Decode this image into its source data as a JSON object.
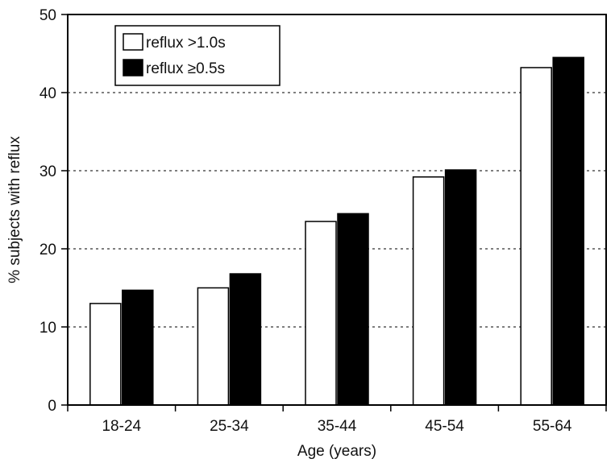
{
  "chart_data": {
    "type": "bar",
    "title": "",
    "xlabel": "Age (years)",
    "ylabel": "% subjects with reflux",
    "categories": [
      "18-24",
      "25-34",
      "35-44",
      "45-54",
      "55-64"
    ],
    "series": [
      {
        "name": "reflux >1.0s",
        "color": "#ffffff",
        "values": [
          13,
          15,
          23.5,
          29.2,
          43.2
        ]
      },
      {
        "name": "reflux ≥0.5s",
        "color": "#000000",
        "values": [
          14.7,
          16.8,
          24.5,
          30.1,
          44.5
        ]
      }
    ],
    "ylim": [
      0,
      50
    ],
    "yticks": [
      0,
      10,
      20,
      30,
      40,
      50
    ],
    "grid": {
      "y": true,
      "style": "dotted",
      "values": [
        10,
        20,
        30,
        40
      ]
    },
    "legend_position": "top-left"
  }
}
